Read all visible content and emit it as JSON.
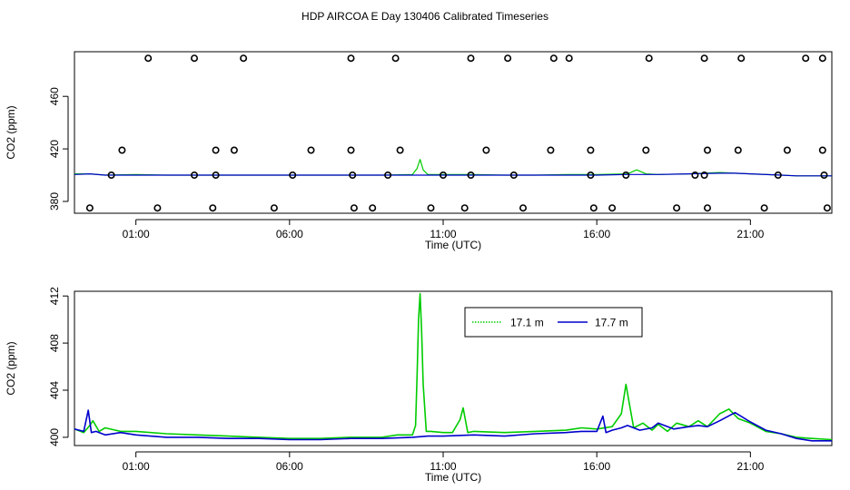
{
  "chart_data": [
    {
      "type": "scatter",
      "title": "HDP AIRCOA E  Day 130406  Calibrated Timeseries",
      "xlabel": "Time (UTC)",
      "ylabel": "CO2 (ppm)",
      "xlim": [
        -1.0,
        23.65
      ],
      "ylim": [
        371,
        494
      ],
      "xticks": [
        1,
        6,
        11,
        16,
        21
      ],
      "xtick_labels": [
        "01:00",
        "06:00",
        "11:00",
        "16:00",
        "21:00"
      ],
      "yticks": [
        380,
        420,
        460
      ],
      "ytick_labels": [
        "380",
        "420",
        "460"
      ],
      "reference_points": {
        "name": "calibration standards",
        "x": [
          1.4,
          2.9,
          4.5,
          8.0,
          9.45,
          11.9,
          13.1,
          14.6,
          15.1,
          17.7,
          19.5,
          20.7,
          22.8,
          23.35,
          0.55,
          3.6,
          4.2,
          6.7,
          8.0,
          9.6,
          12.4,
          14.5,
          15.8,
          17.6,
          19.6,
          20.6,
          22.2,
          23.35,
          0.2,
          2.9,
          3.6,
          6.1,
          8.05,
          9.2,
          11.0,
          11.9,
          13.3,
          15.8,
          16.95,
          19.2,
          19.5,
          21.9,
          23.4,
          -0.5,
          1.7,
          3.5,
          5.5,
          8.1,
          8.7,
          10.6,
          11.7,
          13.6,
          15.9,
          16.5,
          18.6,
          19.6,
          21.45,
          23.5
        ],
        "y": [
          489,
          489,
          489,
          489,
          489,
          489,
          489,
          489,
          489,
          489,
          489,
          489,
          489,
          489,
          419,
          419,
          419,
          419,
          419,
          419,
          419,
          419,
          419,
          419,
          419,
          419,
          419,
          419,
          400,
          400,
          400,
          400,
          400,
          400,
          400,
          400,
          400,
          400,
          400,
          400,
          400,
          400,
          400,
          375,
          375,
          375,
          375,
          375,
          375,
          375,
          375,
          375,
          375,
          375,
          375,
          375,
          375,
          375
        ]
      },
      "series": [
        {
          "name": "17.1 m",
          "color": "#00cc00",
          "x": [
            -1.0,
            -0.5,
            0.0,
            1.0,
            2.0,
            3.0,
            4.0,
            5.0,
            6.0,
            7.0,
            8.0,
            9.0,
            10.0,
            10.15,
            10.25,
            10.35,
            10.5,
            11.0,
            12.0,
            13.0,
            14.0,
            15.0,
            16.0,
            17.0,
            17.3,
            17.6,
            18.0,
            19.0,
            20.0,
            20.5,
            21.0,
            22.0,
            22.5,
            23.65
          ],
          "y": [
            401,
            401,
            400,
            400.5,
            400,
            400,
            400,
            400,
            400,
            400,
            400,
            400,
            400.5,
            405,
            412,
            404,
            400.5,
            400.5,
            400.5,
            400,
            400,
            400.5,
            400.5,
            401,
            404,
            401,
            400.5,
            401,
            402,
            401.5,
            401,
            400,
            399.5,
            399.5
          ]
        },
        {
          "name": "17.7 m",
          "color": "#0000cc",
          "x": [
            -1.0,
            -0.5,
            0.0,
            1.0,
            2.0,
            3.0,
            4.0,
            5.0,
            6.0,
            7.0,
            8.0,
            9.0,
            10.0,
            11.0,
            12.0,
            13.0,
            14.0,
            15.0,
            16.0,
            17.0,
            18.0,
            19.0,
            20.0,
            20.5,
            21.0,
            22.0,
            22.5,
            23.65
          ],
          "y": [
            400.5,
            401,
            400,
            400,
            400,
            400,
            400,
            400,
            400,
            400,
            400,
            400,
            400,
            400,
            400,
            400,
            400,
            400,
            400,
            400.5,
            400.5,
            401,
            401.5,
            401.5,
            401,
            400,
            399.5,
            399.5
          ]
        }
      ]
    },
    {
      "type": "line",
      "xlabel": "Time (UTC)",
      "ylabel": "CO2 (ppm)",
      "xlim": [
        -1.0,
        23.65
      ],
      "ylim": [
        399.3,
        412.4
      ],
      "xticks": [
        1,
        6,
        11,
        16,
        21
      ],
      "xtick_labels": [
        "01:00",
        "06:00",
        "11:00",
        "16:00",
        "21:00"
      ],
      "yticks": [
        400,
        404,
        408,
        412
      ],
      "ytick_labels": [
        "400",
        "404",
        "408",
        "412"
      ],
      "legend": {
        "placement": "top-right",
        "entries": [
          "17.1 m",
          "17.7 m"
        ]
      },
      "series": [
        {
          "name": "17.1 m",
          "color": "#00cc00",
          "x": [
            -1.0,
            -0.7,
            -0.5,
            -0.4,
            -0.2,
            0.0,
            0.5,
            1.0,
            2.0,
            3.0,
            4.0,
            5.0,
            6.0,
            7.0,
            8.0,
            9.0,
            9.5,
            10.0,
            10.1,
            10.15,
            10.2,
            10.25,
            10.3,
            10.35,
            10.45,
            10.6,
            11.0,
            11.3,
            11.55,
            11.65,
            11.8,
            12.0,
            13.0,
            14.0,
            15.0,
            15.5,
            16.0,
            16.5,
            16.8,
            16.95,
            17.05,
            17.2,
            17.5,
            17.8,
            18.0,
            18.3,
            18.6,
            19.0,
            19.3,
            19.6,
            20.0,
            20.3,
            20.6,
            21.0,
            21.5,
            22.0,
            22.5,
            23.0,
            23.65
          ],
          "y": [
            400.7,
            400.4,
            401.0,
            401.4,
            400.5,
            400.8,
            400.5,
            400.5,
            400.3,
            400.2,
            400.1,
            400.0,
            399.9,
            399.9,
            400.0,
            400.0,
            400.2,
            400.2,
            401.0,
            405.0,
            410.0,
            412.2,
            409.0,
            404.5,
            400.5,
            400.5,
            400.4,
            400.4,
            401.5,
            402.5,
            400.4,
            400.5,
            400.4,
            400.5,
            400.6,
            400.8,
            400.7,
            400.9,
            402.0,
            404.5,
            403.0,
            400.8,
            401.2,
            400.6,
            401.1,
            400.5,
            401.2,
            400.9,
            401.4,
            400.9,
            402.0,
            402.4,
            401.6,
            401.2,
            400.5,
            400.3,
            400.0,
            399.9,
            399.8
          ]
        },
        {
          "name": "17.7 m",
          "color": "#0000cc",
          "x": [
            -1.0,
            -0.7,
            -0.55,
            -0.45,
            -0.3,
            0.0,
            0.5,
            1.0,
            2.0,
            3.0,
            4.0,
            5.0,
            6.0,
            7.0,
            8.0,
            9.0,
            10.0,
            10.5,
            11.0,
            12.0,
            13.0,
            14.0,
            15.0,
            15.5,
            16.0,
            16.2,
            16.3,
            16.5,
            16.8,
            17.0,
            17.4,
            17.8,
            18.0,
            18.5,
            19.0,
            19.3,
            19.6,
            20.0,
            20.5,
            21.0,
            21.5,
            22.0,
            22.5,
            23.0,
            23.65
          ],
          "y": [
            400.7,
            400.5,
            402.3,
            400.4,
            400.5,
            400.2,
            400.4,
            400.2,
            400.0,
            400.0,
            399.9,
            399.9,
            399.8,
            399.8,
            399.9,
            399.9,
            400.0,
            400.1,
            400.1,
            400.2,
            400.1,
            400.3,
            400.4,
            400.5,
            400.5,
            401.8,
            400.4,
            400.6,
            400.8,
            401.0,
            400.6,
            400.8,
            401.2,
            400.7,
            400.9,
            401.0,
            400.9,
            401.4,
            402.1,
            401.3,
            400.6,
            400.3,
            399.9,
            399.7,
            399.7
          ]
        }
      ]
    }
  ]
}
